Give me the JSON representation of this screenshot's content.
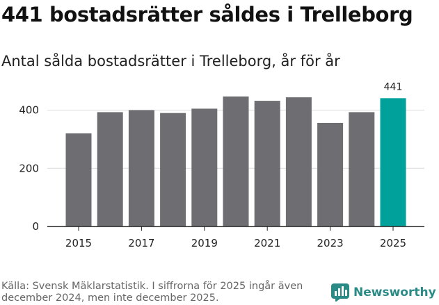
{
  "headline": "441 bostadsrätter såldes i Trelleborg",
  "chart_data": {
    "type": "bar",
    "title": "Antal sålda bostadsrätter i Trelleborg, år för år",
    "categories": [
      "2015",
      "2016",
      "2017",
      "2018",
      "2019",
      "2020",
      "2021",
      "2022",
      "2023",
      "2024",
      "2025"
    ],
    "values": [
      320,
      393,
      400,
      390,
      405,
      447,
      432,
      444,
      356,
      393,
      441
    ],
    "x_tick_labels": [
      "2015",
      "2017",
      "2019",
      "2021",
      "2023",
      "2025"
    ],
    "y_ticks": [
      0,
      200,
      400
    ],
    "y_tick_labels": [
      "0",
      "200",
      "400"
    ],
    "ylim": [
      0,
      480
    ],
    "xlabel": "",
    "ylabel": "",
    "grid": true,
    "highlight_category": "2025",
    "highlight_label": "441",
    "colors": {
      "bar": "#6e6d72",
      "highlight": "#00a19a",
      "grid": "#dcdcdc",
      "axis": "#222222"
    }
  },
  "footer": {
    "source": "Källa: Svensk Mäklarstatistik. I siffrorna för 2025 ingår även december 2024, men inte december 2025."
  },
  "logo": {
    "text": "Newsworthy",
    "icon": "newsworthy-chart-icon",
    "color": "#2a8a86"
  }
}
